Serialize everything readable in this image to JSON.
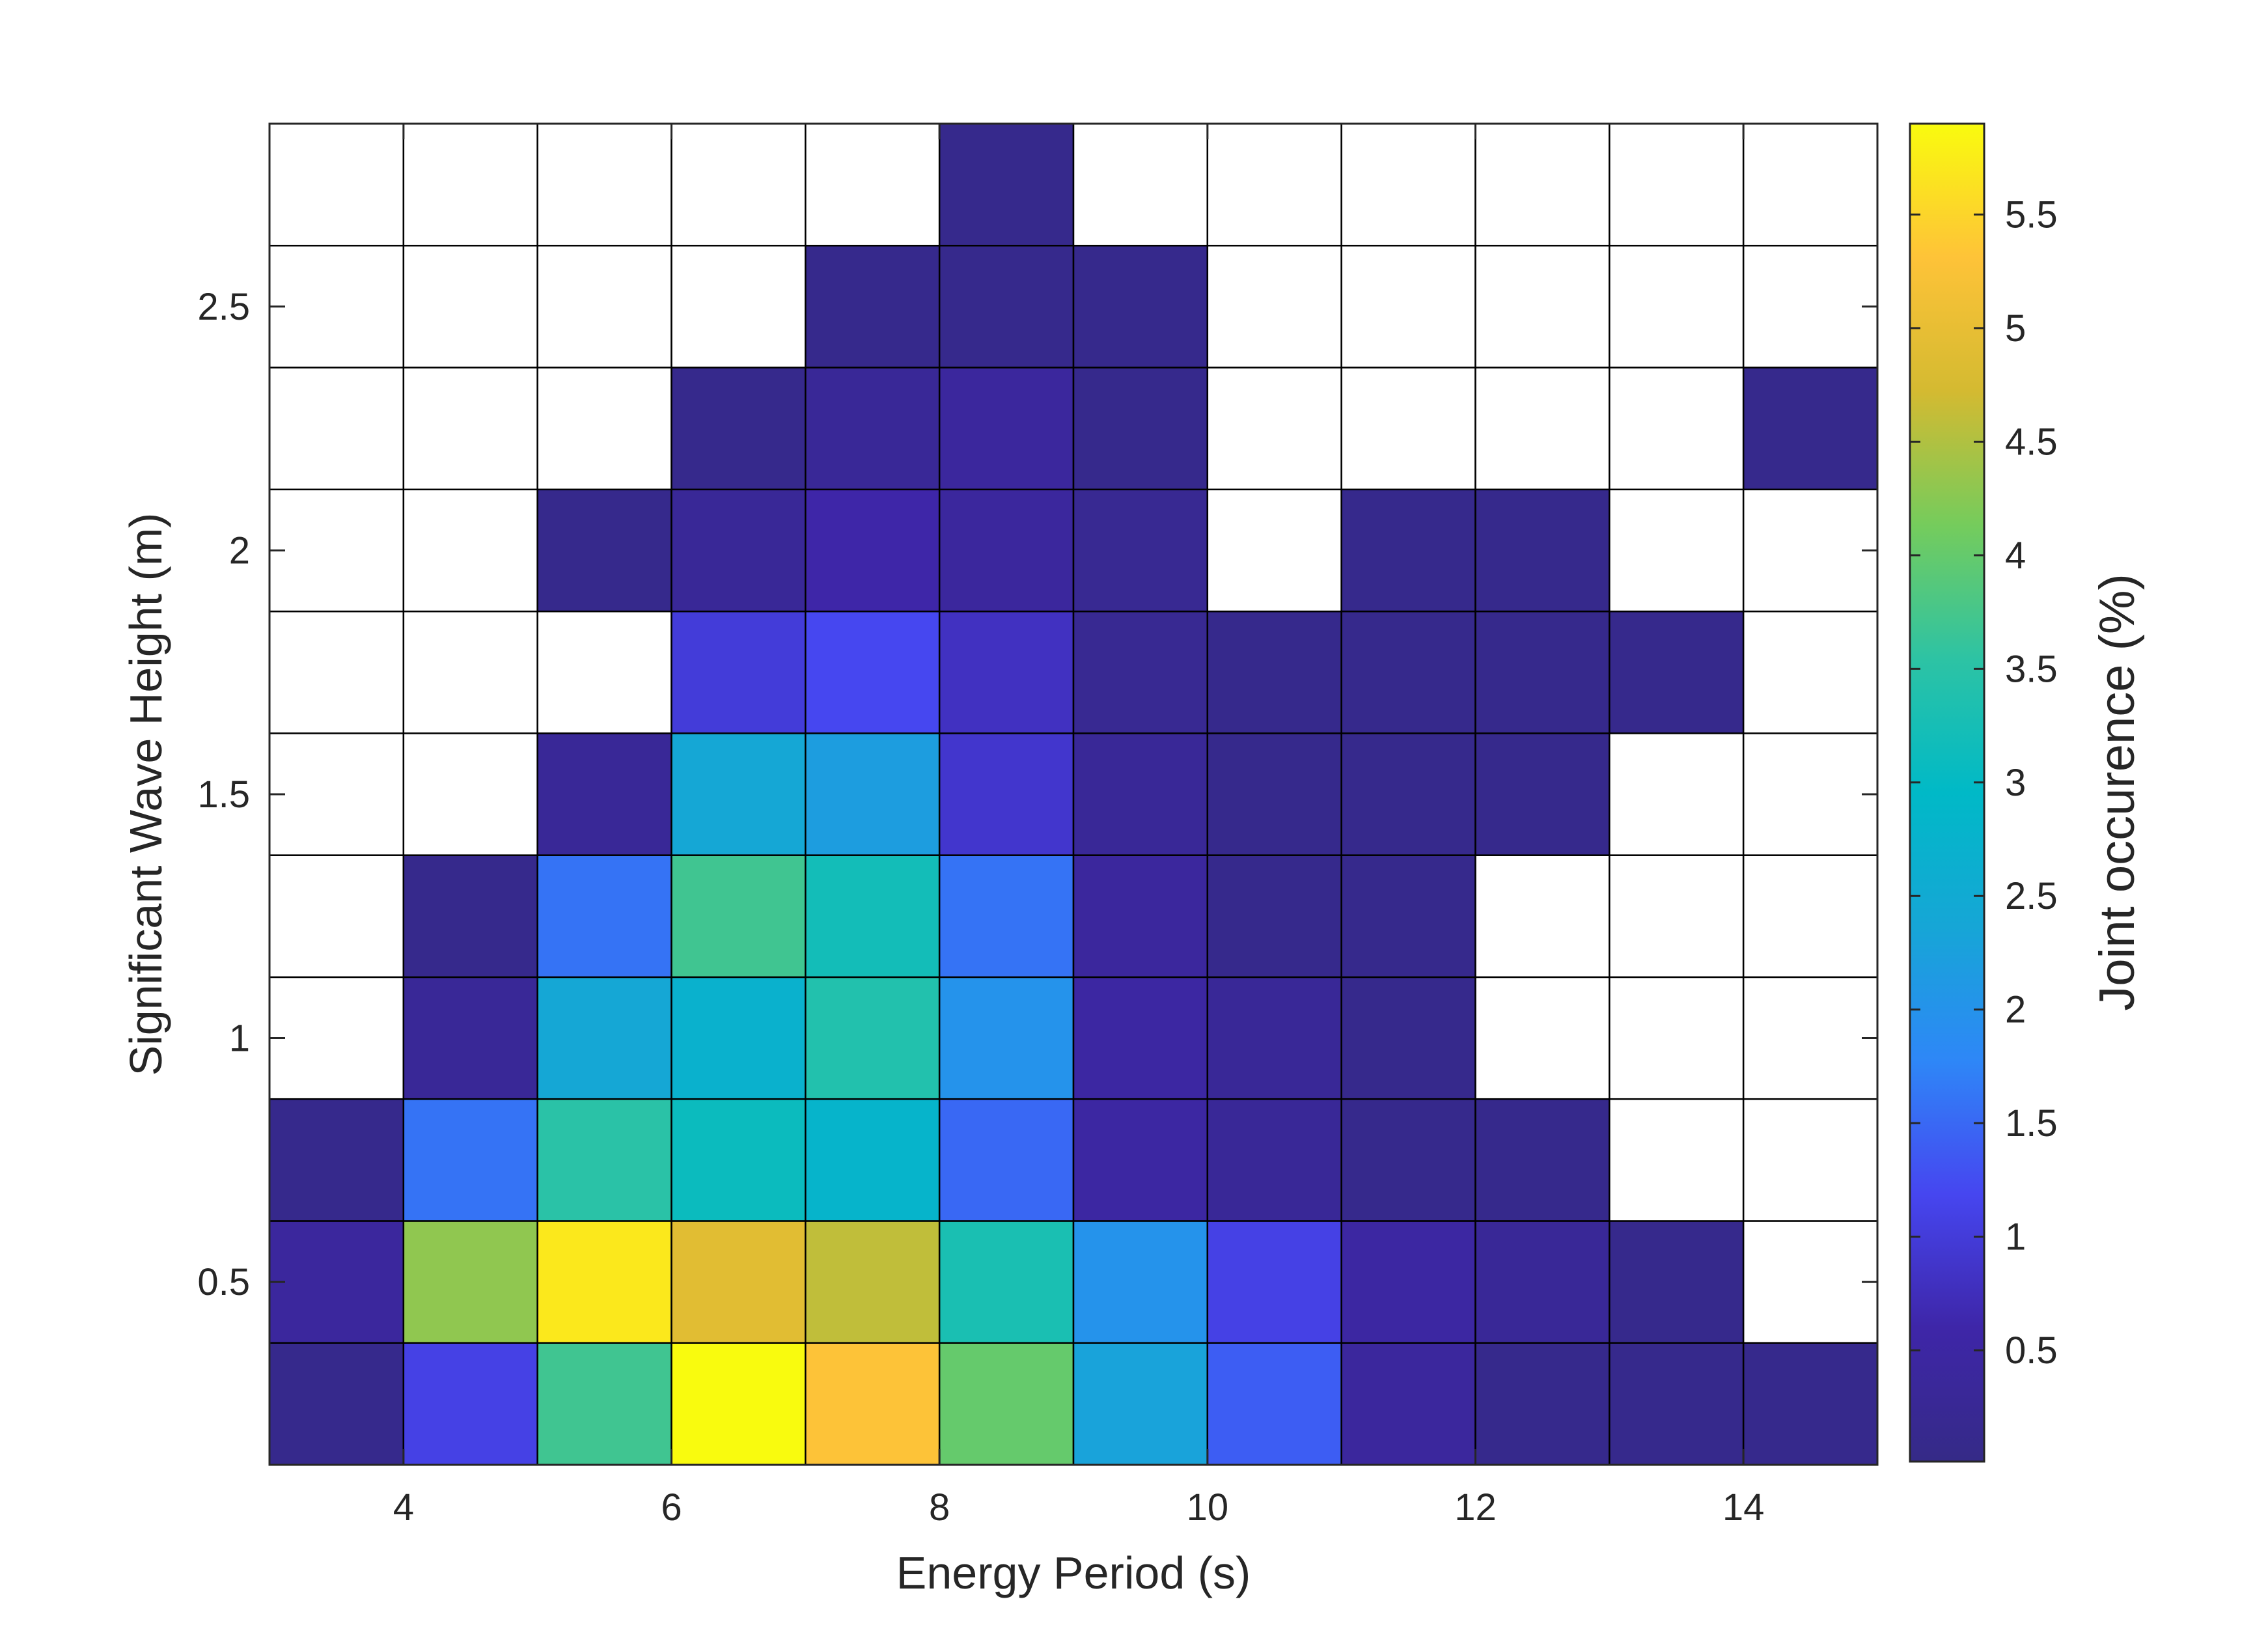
{
  "chart_data": {
    "type": "heatmap",
    "title": "",
    "xlabel": "Energy Period (s)",
    "ylabel": "Significant Wave Height (m)",
    "x_bin_edges": [
      3,
      4,
      5,
      6,
      7,
      8,
      9,
      10,
      11,
      12,
      13,
      14,
      15
    ],
    "y_bin_edges": [
      0.125,
      0.375,
      0.625,
      0.875,
      1.125,
      1.375,
      1.625,
      1.875,
      2.125,
      2.375,
      2.625,
      2.875
    ],
    "xlim": [
      3,
      15
    ],
    "ylim": [
      0.125,
      2.875
    ],
    "x_ticks": [
      4,
      6,
      8,
      10,
      12,
      14
    ],
    "x_tick_labels": [
      "4",
      "6",
      "8",
      "10",
      "12",
      "14"
    ],
    "y_ticks": [
      0.5,
      1,
      1.5,
      2,
      2.5
    ],
    "y_tick_labels": [
      "0.5",
      "1",
      "1.5",
      "2",
      "2.5"
    ],
    "values_note_rows": "bottom to top",
    "values": [
      [
        0.1,
        1.1,
        3.7,
        5.9,
        5.3,
        4.0,
        2.3,
        1.4,
        0.4,
        0.1,
        0.1,
        0.1
      ],
      [
        0.4,
        4.3,
        5.7,
        4.9,
        4.6,
        3.3,
        2.0,
        1.1,
        0.5,
        0.3,
        0.1,
        null
      ],
      [
        0.1,
        1.6,
        3.5,
        3.1,
        2.8,
        1.5,
        0.5,
        0.3,
        0.1,
        0.1,
        null,
        null
      ],
      [
        null,
        0.3,
        2.4,
        2.7,
        3.4,
        2.0,
        0.5,
        0.3,
        0.1,
        null,
        null,
        null
      ],
      [
        null,
        0.1,
        1.6,
        3.7,
        3.2,
        1.6,
        0.4,
        0.1,
        0.1,
        null,
        null,
        null
      ],
      [
        null,
        null,
        0.3,
        2.4,
        2.2,
        0.9,
        0.3,
        0.1,
        0.1,
        0.1,
        null,
        null
      ],
      [
        null,
        null,
        null,
        1.0,
        1.2,
        0.8,
        0.2,
        0.1,
        0.1,
        0.1,
        0.1,
        null
      ],
      [
        null,
        null,
        0.1,
        0.3,
        0.6,
        0.4,
        0.2,
        null,
        0.1,
        0.1,
        null,
        null
      ],
      [
        null,
        null,
        null,
        0.1,
        0.3,
        0.4,
        0.1,
        null,
        null,
        null,
        null,
        0.1
      ],
      [
        null,
        null,
        null,
        null,
        0.1,
        0.1,
        0.1,
        null,
        null,
        null,
        null,
        null
      ],
      [
        null,
        null,
        null,
        null,
        null,
        0.1,
        null,
        null,
        null,
        null,
        null,
        null
      ]
    ],
    "colorbar": {
      "label": "Joint occurence (%)",
      "colormap": "parula",
      "clim": [
        0.01,
        5.9
      ],
      "ticks": [
        0.5,
        1,
        1.5,
        2,
        2.5,
        3,
        3.5,
        4,
        4.5,
        5,
        5.5
      ],
      "tick_labels": [
        "0.5",
        "1",
        "1.5",
        "2",
        "2.5",
        "3",
        "3.5",
        "4",
        "4.5",
        "5",
        "5.5"
      ]
    },
    "grid": true,
    "colorbar_placement": "right"
  }
}
